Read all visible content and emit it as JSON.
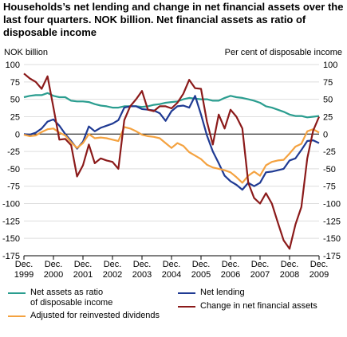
{
  "chart_data": {
    "type": "line",
    "title": "Households’s net lending and change in net financial assets over the last four quarters. NOK billion. Net financial assets as ratio of disposable income",
    "ylabel_left": "NOK billion",
    "ylabel_right": "Per cent of disposable income",
    "ylim": [
      -175,
      100
    ],
    "yticks": [
      100,
      75,
      50,
      25,
      0,
      -25,
      -50,
      -75,
      -100,
      -125,
      -150,
      -175
    ],
    "x_tick_labels": [
      {
        "line1": "Dec.",
        "line2": "1999"
      },
      {
        "line1": "Dec.",
        "line2": "2000"
      },
      {
        "line1": "Dec.",
        "line2": "2001"
      },
      {
        "line1": "Dec.",
        "line2": "2002"
      },
      {
        "line1": "Dec.",
        "line2": "2003"
      },
      {
        "line1": "Dec.",
        "line2": "2004"
      },
      {
        "line1": "Dec.",
        "line2": "2005"
      },
      {
        "line1": "Dec.",
        "line2": "2006"
      },
      {
        "line1": "Dec.",
        "line2": "2007"
      },
      {
        "line1": "Dec.",
        "line2": "2008"
      },
      {
        "line1": "Dec.",
        "line2": "2009"
      }
    ],
    "x_start": "1999Q4",
    "x_end": "2009Q4",
    "series": [
      {
        "name": "Net assets as ratio of disposable income",
        "legend_lines": [
          "Net assets as ratio",
          "of disposable income"
        ],
        "color": "#2a9d8f",
        "values": [
          53,
          55,
          56,
          56,
          59,
          55,
          53,
          53,
          48,
          47,
          47,
          46,
          43,
          41,
          40,
          38,
          38,
          40,
          40,
          40,
          39,
          40,
          42,
          43,
          45,
          46,
          47,
          50,
          52,
          51,
          50,
          50,
          48,
          48,
          52,
          55,
          53,
          52,
          50,
          48,
          45,
          40,
          38,
          35,
          32,
          28,
          26,
          26,
          24,
          25,
          26
        ]
      },
      {
        "name": "Net lending",
        "legend_lines": [
          "Net lending"
        ],
        "color": "#1f3a93",
        "values": [
          0,
          -1,
          2,
          8,
          18,
          21,
          12,
          0,
          -10,
          -21,
          -11,
          11,
          4,
          9,
          12,
          15,
          20,
          38,
          40,
          40,
          36,
          35,
          34,
          30,
          19,
          33,
          40,
          41,
          38,
          55,
          28,
          -2,
          -25,
          -42,
          -60,
          -68,
          -73,
          -80,
          -70,
          -75,
          -70,
          -55,
          -54,
          -52,
          -50,
          -38,
          -35,
          -23,
          -10,
          -9,
          -13
        ]
      },
      {
        "name": "Adjusted for reinvested dividends",
        "legend_lines": [
          "Adjusted for reinvested dividends"
        ],
        "color": "#f4a240",
        "values": [
          -1,
          -3,
          -2,
          3,
          7,
          8,
          2,
          -2,
          -12,
          -20,
          -13,
          0,
          -6,
          -5,
          -6,
          -8,
          -10,
          10,
          8,
          4,
          -1,
          -3,
          -4,
          -6,
          -13,
          -20,
          -13,
          -17,
          -26,
          -31,
          -36,
          -44,
          -48,
          -50,
          -52,
          -55,
          -62,
          -70,
          -60,
          -54,
          -60,
          -45,
          -40,
          -38,
          -37,
          -28,
          -18,
          -14,
          4,
          7,
          2
        ]
      },
      {
        "name": "Change in net financial assets",
        "legend_lines": [
          "Change in net financial assets"
        ],
        "color": "#8b1a1a",
        "values": [
          87,
          80,
          75,
          65,
          83,
          38,
          -8,
          -7,
          -16,
          -61,
          -45,
          -15,
          -42,
          -35,
          -38,
          -40,
          -50,
          20,
          40,
          50,
          62,
          35,
          33,
          40,
          40,
          37,
          45,
          58,
          78,
          66,
          65,
          18,
          -15,
          28,
          8,
          35,
          25,
          8,
          -70,
          -92,
          -100,
          -85,
          -100,
          -127,
          -153,
          -165,
          -130,
          -105,
          -35,
          5,
          25
        ]
      }
    ]
  }
}
